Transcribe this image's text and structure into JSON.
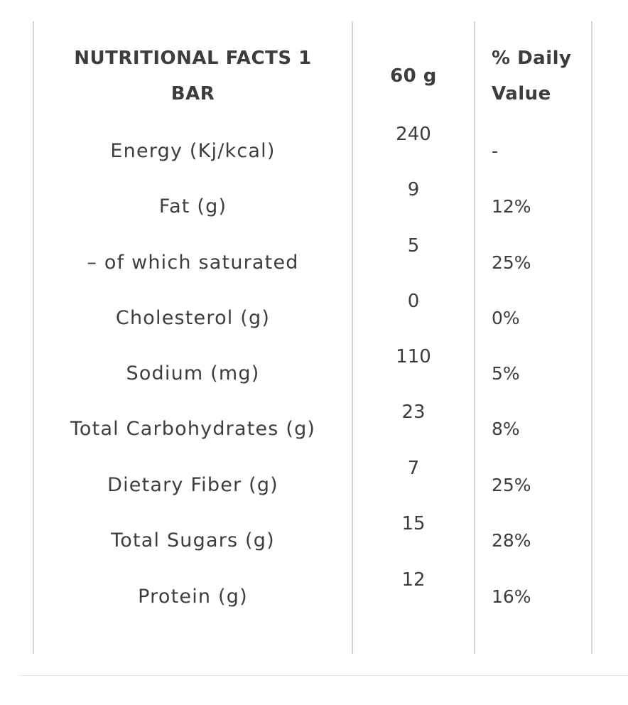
{
  "table": {
    "headers": {
      "name": "NUTRITIONAL FACTS 1 BAR",
      "name_line1": "NUTRITIONAL FACTS 1",
      "name_line2": "BAR",
      "amount": "60 g",
      "daily_value_line1": "% Daily",
      "daily_value_line2": "Value"
    },
    "rows": [
      {
        "name": "Energy (Kj/kcal)",
        "amount": "240",
        "daily_value": "-"
      },
      {
        "name": "Fat (g)",
        "amount": "9",
        "daily_value": "12%"
      },
      {
        "name": "– of which saturated",
        "amount": "5",
        "daily_value": "25%"
      },
      {
        "name": "Cholesterol (g)",
        "amount": "0",
        "daily_value": "0%"
      },
      {
        "name": "Sodium (mg)",
        "amount": "110",
        "daily_value": "5%"
      },
      {
        "name": "Total Carbohydrates (g)",
        "amount": "23",
        "daily_value": "8%"
      },
      {
        "name": "Dietary Fiber (g)",
        "amount": "7",
        "daily_value": "25%"
      },
      {
        "name": "Total Sugars (g)",
        "amount": "15",
        "daily_value": "28%"
      },
      {
        "name": "Protein (g)",
        "amount": "12",
        "daily_value": "16%"
      }
    ]
  }
}
